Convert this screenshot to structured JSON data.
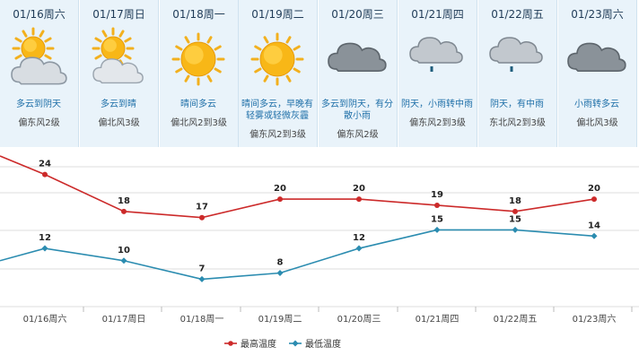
{
  "days": [
    {
      "date": "01/16周六",
      "desc": "多云到阴天",
      "wind": "偏东风2级",
      "icon": "partly-cloudy-to-overcast-icon"
    },
    {
      "date": "01/17周日",
      "desc": "多云到晴",
      "wind": "偏北风3级",
      "icon": "partly-cloudy-to-sunny-icon"
    },
    {
      "date": "01/18周一",
      "desc": "晴间多云",
      "wind": "偏北风2到3级",
      "icon": "sunny-icon"
    },
    {
      "date": "01/19周二",
      "desc": "晴间多云，早晚有轻雾或轻微灰霾",
      "wind": "偏东风2到3级",
      "icon": "sunny-icon"
    },
    {
      "date": "01/20周三",
      "desc": "多云到阴天，有分散小雨",
      "wind": "偏东风2级",
      "icon": "overcast-icon"
    },
    {
      "date": "01/21周四",
      "desc": "阴天，小雨转中雨",
      "wind": "偏东风2到3级",
      "icon": "cloud-rain-icon"
    },
    {
      "date": "01/22周五",
      "desc": "阴天，有中雨",
      "wind": "东北风2到3级",
      "icon": "cloud-rain-icon"
    },
    {
      "date": "01/23周六",
      "desc": "小雨转多云",
      "wind": "偏北风3级",
      "icon": "overcast-icon"
    }
  ],
  "chart_data": {
    "type": "line",
    "categories": [
      "01/16周六",
      "01/17周日",
      "01/18周一",
      "01/19周二",
      "01/20周三",
      "01/21周四",
      "01/22周五",
      "01/23周六"
    ],
    "series": [
      {
        "name": "最高温度",
        "values": [
          24,
          18,
          17,
          20,
          20,
          19,
          18,
          20
        ],
        "color": "#cc2a2a"
      },
      {
        "name": "最低温度",
        "values": [
          12,
          10,
          7,
          8,
          12,
          15,
          15,
          14
        ],
        "color": "#2b8cb0"
      }
    ],
    "series_start_prev": [
      27,
      10
    ],
    "ylim": [
      4,
      27
    ],
    "grid": true,
    "legend": "bottom-center"
  }
}
